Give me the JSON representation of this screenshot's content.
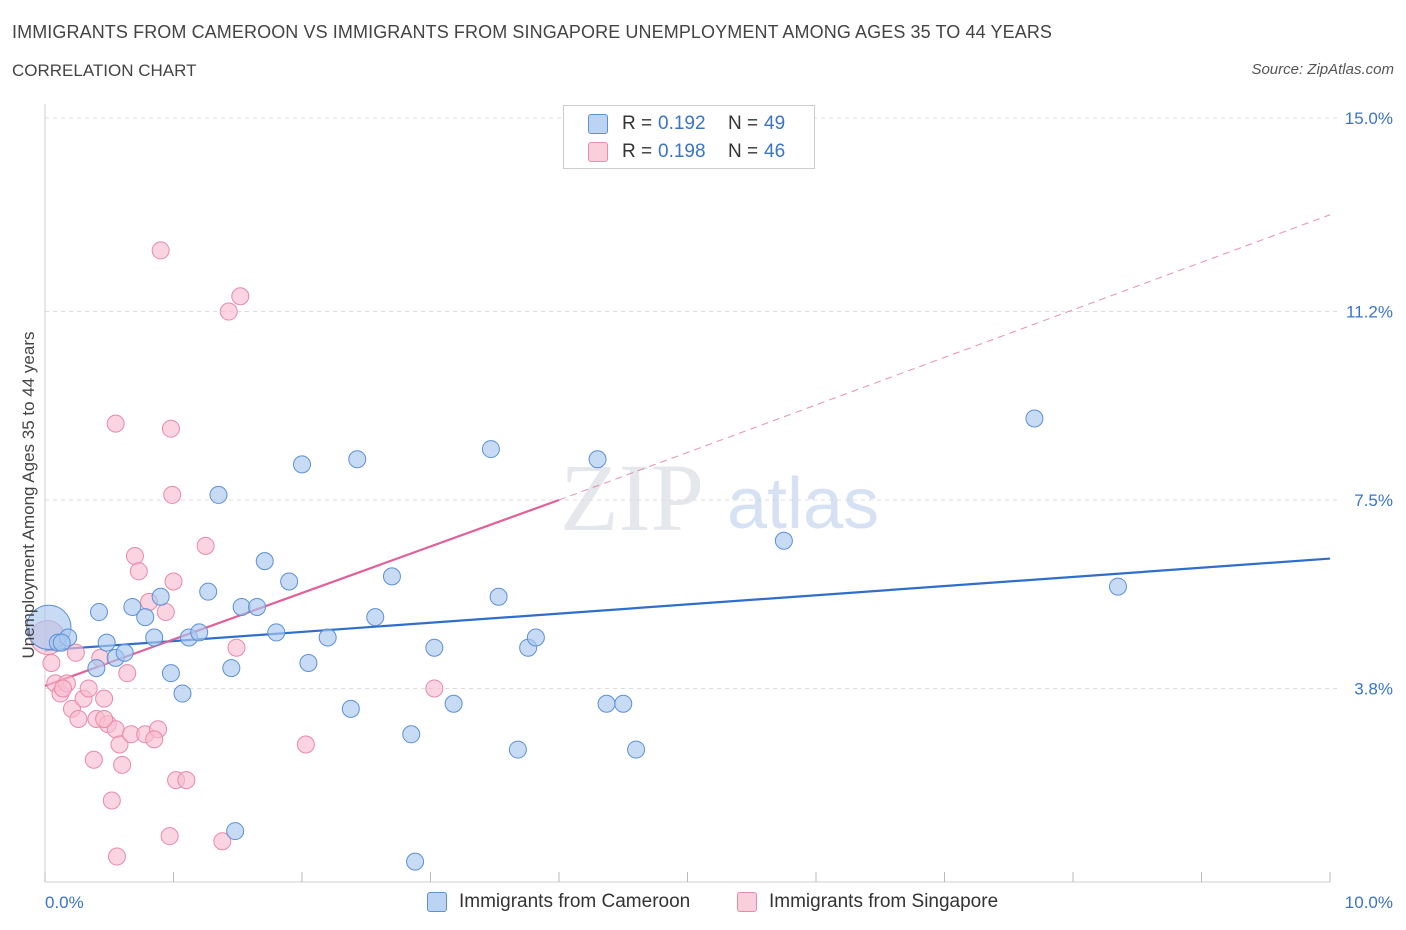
{
  "header": {
    "title": "IMMIGRANTS FROM CAMEROON VS IMMIGRANTS FROM SINGAPORE UNEMPLOYMENT AMONG AGES 35 TO 44 YEARS",
    "subtitle": "CORRELATION CHART",
    "source": "Source: ZipAtlas.com"
  },
  "watermark": {
    "part1": "ZIP",
    "part2": "atlas"
  },
  "legend_top": [
    {
      "r_label": "R = ",
      "r_value": "0.192",
      "n_label": "N = ",
      "n_value": "49"
    },
    {
      "r_label": "R = ",
      "r_value": "0.198",
      "n_label": "N = ",
      "n_value": "46"
    }
  ],
  "legend_bottom": {
    "cameroon": "Immigrants from Cameroon",
    "singapore": "Immigrants from Singapore"
  },
  "colors": {
    "cameroon_fill": "#a9c8f0",
    "cameroon_stroke": "#5d90d6",
    "cameroon_line": "#2f6fc9",
    "singapore_fill": "#f7bdd0",
    "singapore_stroke": "#e88aaa",
    "singapore_line": "#e0609a",
    "axis_label": "#3a74c9"
  },
  "chart_data": {
    "type": "scatter",
    "title": "IMMIGRANTS FROM CAMEROON VS IMMIGRANTS FROM SINGAPORE UNEMPLOYMENT AMONG AGES 35 TO 44 YEARS",
    "ylabel": "Unemployment Among Ages 35 to 44 years",
    "xlabel": "",
    "xlim": [
      0,
      10
    ],
    "ylim": [
      0,
      15
    ],
    "x_tick_labels": [
      {
        "value": 0,
        "label": "0.0%"
      },
      {
        "value": 10,
        "label": "10.0%"
      }
    ],
    "y_tick_labels": [
      {
        "value": 3.8,
        "label": "3.8%"
      },
      {
        "value": 7.5,
        "label": "7.5%"
      },
      {
        "value": 11.2,
        "label": "11.2%"
      },
      {
        "value": 15.0,
        "label": "15.0%"
      }
    ],
    "grid": true,
    "legend_position": "top-center",
    "series": [
      {
        "name": "Immigrants from Cameroon",
        "color": "#a9c8f0",
        "points": [
          {
            "x": 0.03,
            "y": 5.0,
            "size": 2.6
          },
          {
            "x": 0.1,
            "y": 4.7
          },
          {
            "x": 0.18,
            "y": 4.8
          },
          {
            "x": 0.4,
            "y": 4.2
          },
          {
            "x": 0.42,
            "y": 5.3
          },
          {
            "x": 0.48,
            "y": 4.7
          },
          {
            "x": 0.55,
            "y": 4.4
          },
          {
            "x": 0.62,
            "y": 4.5
          },
          {
            "x": 0.68,
            "y": 5.4
          },
          {
            "x": 0.78,
            "y": 5.2
          },
          {
            "x": 0.85,
            "y": 4.8
          },
          {
            "x": 0.9,
            "y": 5.6
          },
          {
            "x": 0.98,
            "y": 4.1
          },
          {
            "x": 1.07,
            "y": 3.7
          },
          {
            "x": 1.12,
            "y": 4.8
          },
          {
            "x": 1.2,
            "y": 4.9
          },
          {
            "x": 1.27,
            "y": 5.7
          },
          {
            "x": 1.35,
            "y": 7.6
          },
          {
            "x": 1.45,
            "y": 4.2
          },
          {
            "x": 1.53,
            "y": 5.4
          },
          {
            "x": 1.65,
            "y": 5.4
          },
          {
            "x": 1.71,
            "y": 6.3
          },
          {
            "x": 1.8,
            "y": 4.9
          },
          {
            "x": 1.9,
            "y": 5.9
          },
          {
            "x": 2.0,
            "y": 8.2
          },
          {
            "x": 2.05,
            "y": 4.3
          },
          {
            "x": 2.2,
            "y": 4.8
          },
          {
            "x": 2.38,
            "y": 3.4
          },
          {
            "x": 2.43,
            "y": 8.3
          },
          {
            "x": 2.57,
            "y": 5.2
          },
          {
            "x": 2.7,
            "y": 6.0
          },
          {
            "x": 2.85,
            "y": 2.9
          },
          {
            "x": 3.03,
            "y": 4.6
          },
          {
            "x": 3.18,
            "y": 3.5
          },
          {
            "x": 3.47,
            "y": 8.5
          },
          {
            "x": 3.53,
            "y": 5.6
          },
          {
            "x": 3.68,
            "y": 2.6
          },
          {
            "x": 3.76,
            "y": 4.6
          },
          {
            "x": 3.82,
            "y": 4.8
          },
          {
            "x": 4.3,
            "y": 8.3
          },
          {
            "x": 4.37,
            "y": 3.5
          },
          {
            "x": 4.5,
            "y": 3.5
          },
          {
            "x": 4.6,
            "y": 2.6
          },
          {
            "x": 5.75,
            "y": 6.7
          },
          {
            "x": 7.7,
            "y": 9.1
          },
          {
            "x": 8.35,
            "y": 5.8
          },
          {
            "x": 1.48,
            "y": 1.0
          },
          {
            "x": 2.88,
            "y": 0.4
          },
          {
            "x": 0.13,
            "y": 4.7
          }
        ]
      },
      {
        "name": "Immigrants from Singapore",
        "color": "#f7bdd0",
        "points": [
          {
            "x": 0.02,
            "y": 4.8,
            "size": 2.0
          },
          {
            "x": 0.05,
            "y": 4.3
          },
          {
            "x": 0.08,
            "y": 3.9
          },
          {
            "x": 0.12,
            "y": 3.7
          },
          {
            "x": 0.17,
            "y": 3.9
          },
          {
            "x": 0.21,
            "y": 3.4
          },
          {
            "x": 0.24,
            "y": 4.5
          },
          {
            "x": 0.26,
            "y": 3.2
          },
          {
            "x": 0.3,
            "y": 3.6
          },
          {
            "x": 0.34,
            "y": 3.8
          },
          {
            "x": 0.38,
            "y": 2.4
          },
          {
            "x": 0.4,
            "y": 3.2
          },
          {
            "x": 0.43,
            "y": 4.4
          },
          {
            "x": 0.46,
            "y": 3.6
          },
          {
            "x": 0.49,
            "y": 3.1
          },
          {
            "x": 0.52,
            "y": 1.6
          },
          {
            "x": 0.55,
            "y": 3.0
          },
          {
            "x": 0.58,
            "y": 2.7
          },
          {
            "x": 0.6,
            "y": 2.3
          },
          {
            "x": 0.64,
            "y": 4.1
          },
          {
            "x": 0.67,
            "y": 2.9
          },
          {
            "x": 0.7,
            "y": 6.4
          },
          {
            "x": 0.73,
            "y": 6.1
          },
          {
            "x": 0.78,
            "y": 2.9
          },
          {
            "x": 0.81,
            "y": 5.5
          },
          {
            "x": 0.88,
            "y": 3.0
          },
          {
            "x": 0.94,
            "y": 5.3
          },
          {
            "x": 1.02,
            "y": 2.0
          },
          {
            "x": 1.1,
            "y": 2.0
          },
          {
            "x": 1.25,
            "y": 6.6
          },
          {
            "x": 1.38,
            "y": 0.8
          },
          {
            "x": 1.43,
            "y": 11.2
          },
          {
            "x": 1.52,
            "y": 11.5
          },
          {
            "x": 1.49,
            "y": 4.6
          },
          {
            "x": 0.85,
            "y": 2.8
          },
          {
            "x": 0.55,
            "y": 9.0
          },
          {
            "x": 0.9,
            "y": 12.4
          },
          {
            "x": 0.97,
            "y": 0.9
          },
          {
            "x": 0.98,
            "y": 8.9
          },
          {
            "x": 0.99,
            "y": 7.6
          },
          {
            "x": 1.0,
            "y": 5.9
          },
          {
            "x": 2.03,
            "y": 2.7
          },
          {
            "x": 3.03,
            "y": 3.8
          },
          {
            "x": 0.56,
            "y": 0.5
          },
          {
            "x": 0.14,
            "y": 3.8
          },
          {
            "x": 0.46,
            "y": 3.2
          }
        ]
      }
    ],
    "trendlines": [
      {
        "series": "Immigrants from Cameroon",
        "x0": 0.0,
        "y0": 4.55,
        "x1": 10.0,
        "y1": 6.35,
        "style": "solid"
      },
      {
        "series": "Immigrants from Singapore",
        "x0": 0.0,
        "y0": 3.85,
        "x1": 4.0,
        "y1": 7.5,
        "style": "solid"
      },
      {
        "series": "Immigrants from Singapore",
        "x0": 4.0,
        "y0": 7.5,
        "x1": 10.0,
        "y1": 13.1,
        "style": "dashed"
      }
    ]
  }
}
